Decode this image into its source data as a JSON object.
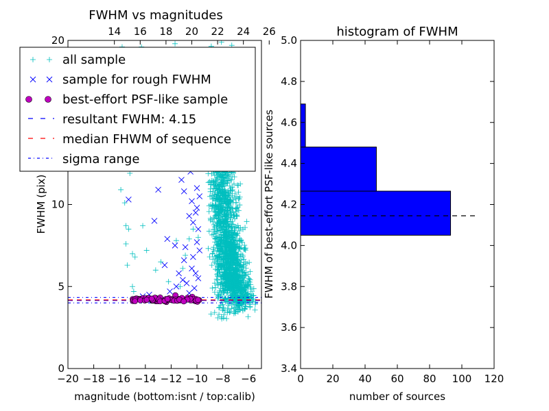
{
  "chart_data": [
    {
      "type": "scatter",
      "title": "FWHM vs magnitudes",
      "xlabel": "magnitude (bottom:isnt / top:calib)",
      "ylabel": "FWHM (pix)",
      "xlim": [
        -20,
        -5
      ],
      "ylim": [
        0,
        20
      ],
      "x_ticks": [
        "−20",
        "−18",
        "−16",
        "−14",
        "−12",
        "−10",
        "−8",
        "−6"
      ],
      "x_tick_values": [
        -20,
        -18,
        -16,
        -14,
        -12,
        -10,
        -8,
        -6
      ],
      "y_ticks": [
        "0",
        "5",
        "10",
        "20"
      ],
      "y_tick_values": [
        0,
        5,
        10,
        20
      ],
      "top_axis": {
        "ticks": [
          "14",
          "16",
          "18",
          "20",
          "22",
          "24",
          "26"
        ],
        "tick_values": [
          14,
          16,
          18,
          20,
          22,
          24,
          26
        ],
        "xlim": [
          10.4,
          25.4
        ]
      },
      "legend": {
        "placement": "upper-left",
        "entries": [
          "all sample",
          "sample for rough FWHM",
          "best-effort PSF-like sample",
          "resultant FWHM: 4.15",
          "median FHWM of sequence",
          "sigma range"
        ]
      },
      "colors": {
        "all_sample": "#00bfbf",
        "rough": "#0000ff",
        "best": "#bf00bf",
        "resultant": "#0000ff",
        "median": "#ff0000",
        "sigma": "#0000ff"
      },
      "series": [
        {
          "name": "all sample",
          "marker": "plus",
          "points": [
            [
              -15.8,
              19.6
            ],
            [
              -15.9,
              10.9
            ],
            [
              -15.6,
              10.1
            ],
            [
              -15.5,
              8.7
            ],
            [
              -15.3,
              8.5
            ],
            [
              -15.5,
              7.6
            ],
            [
              -15.0,
              7.0
            ],
            [
              -15.4,
              6.3
            ],
            [
              -14.8,
              6.8
            ],
            [
              -15.0,
              5.0
            ],
            [
              -14.9,
              4.7
            ],
            [
              -15.2,
              11.9
            ],
            [
              -14.2,
              8.7
            ],
            [
              -13.9,
              7.2
            ],
            [
              -13.2,
              6.0
            ],
            [
              -12.8,
              6.5
            ],
            [
              -12.2,
              5.3
            ],
            [
              -11.6,
              7.8
            ],
            [
              -11.1,
              6.1
            ],
            [
              -11.3,
              5.0
            ],
            [
              -10.9,
              6.9
            ],
            [
              -10.6,
              7.9
            ],
            [
              -10.3,
              8.5
            ],
            [
              -9.9,
              8.0
            ],
            [
              -14.3,
              19.6
            ],
            [
              -11.7,
              19.8
            ],
            [
              -8.1,
              19.9
            ],
            [
              -7.3,
              19.7
            ],
            [
              -10.5,
              19.0
            ],
            [
              -9.8,
              18.0
            ]
          ],
          "clouds": [
            {
              "center": [
                -7.8,
                8.2
              ],
              "spread": [
                0.8,
                4.5
              ],
              "count": 900
            },
            {
              "center": [
                -7.2,
                5.8
              ],
              "spread": [
                0.7,
                1.6
              ],
              "count": 600
            },
            {
              "center": [
                -8.3,
                11.0
              ],
              "spread": [
                0.6,
                3.0
              ],
              "count": 300
            },
            {
              "center": [
                -6.5,
                4.4
              ],
              "spread": [
                0.7,
                0.8
              ],
              "count": 250
            }
          ]
        },
        {
          "name": "sample for rough FWHM",
          "marker": "x",
          "points": [
            [
              -15.3,
              10.3
            ],
            [
              -13.0,
              10.9
            ],
            [
              -12.0,
              13.0
            ],
            [
              -11.2,
              11.5
            ],
            [
              -10.3,
              13.9
            ],
            [
              -10.0,
              11.0
            ],
            [
              -10.5,
              12.0
            ],
            [
              -11.0,
              10.8
            ],
            [
              -13.3,
              9.0
            ],
            [
              -12.3,
              7.9
            ],
            [
              -11.7,
              7.5
            ],
            [
              -11.0,
              6.6
            ],
            [
              -10.9,
              7.4
            ],
            [
              -10.3,
              8.9
            ],
            [
              -10.1,
              9.5
            ],
            [
              -9.9,
              8.5
            ],
            [
              -9.8,
              7.2
            ],
            [
              -10.4,
              6.1
            ],
            [
              -10.1,
              5.8
            ],
            [
              -11.1,
              5.4
            ],
            [
              -11.6,
              5.0
            ],
            [
              -9.9,
              5.5
            ],
            [
              -10.2,
              4.9
            ],
            [
              -10.6,
              4.6
            ],
            [
              -12.1,
              4.7
            ],
            [
              -13.7,
              4.5
            ],
            [
              -14.2,
              4.4
            ],
            [
              -10.7,
              12.8
            ],
            [
              -10.4,
              10.2
            ],
            [
              -9.8,
              10.5
            ],
            [
              -10.0,
              9.8
            ],
            [
              -11.4,
              5.8
            ],
            [
              -10.8,
              5.2
            ],
            [
              -10.3,
              6.8
            ],
            [
              -10.0,
              7.7
            ],
            [
              -12.5,
              6.3
            ],
            [
              -10.6,
              9.3
            ]
          ]
        },
        {
          "name": "best-effort PSF-like sample",
          "marker": "circle",
          "x_range": [
            -15.0,
            -9.8
          ],
          "y_center": 4.2,
          "y_spread": 0.07,
          "count": 80
        }
      ],
      "lines": [
        {
          "name": "resultant FWHM: 4.15",
          "y": 4.15,
          "style": "dashed"
        },
        {
          "name": "median FHWM of sequence",
          "y": 4.18,
          "style": "dashed"
        },
        {
          "name": "sigma range",
          "y": [
            4.0,
            4.33
          ],
          "style": "dashdot"
        }
      ]
    },
    {
      "type": "bar",
      "orientation": "horizontal",
      "title": "histogram of FWHM",
      "xlabel": "number of sources",
      "ylabel": "FWHM of best-effort PSF-like sources",
      "xlim": [
        0,
        120
      ],
      "ylim": [
        3.4,
        5.0
      ],
      "x_ticks": [
        "0",
        "20",
        "40",
        "60",
        "80",
        "100",
        "120"
      ],
      "x_tick_values": [
        0,
        20,
        40,
        60,
        80,
        100,
        120
      ],
      "y_ticks": [
        "3.4",
        "3.6",
        "3.8",
        "4.0",
        "4.2",
        "4.4",
        "4.6",
        "4.8",
        "5.0"
      ],
      "y_tick_values": [
        3.4,
        3.6,
        3.8,
        4.0,
        4.2,
        4.4,
        4.6,
        4.8,
        5.0
      ],
      "bins": [
        {
          "y0": 4.05,
          "y1": 4.265,
          "count": 93
        },
        {
          "y0": 4.265,
          "y1": 4.48,
          "count": 47
        },
        {
          "y0": 4.48,
          "y1": 4.69,
          "count": 3
        },
        {
          "y0": 4.69,
          "y1": 4.9,
          "count": 0
        }
      ],
      "bar_color": "#0000ff",
      "reference_line": {
        "y": 4.145,
        "x_extent": [
          0,
          110
        ],
        "style": "dashed"
      }
    }
  ]
}
